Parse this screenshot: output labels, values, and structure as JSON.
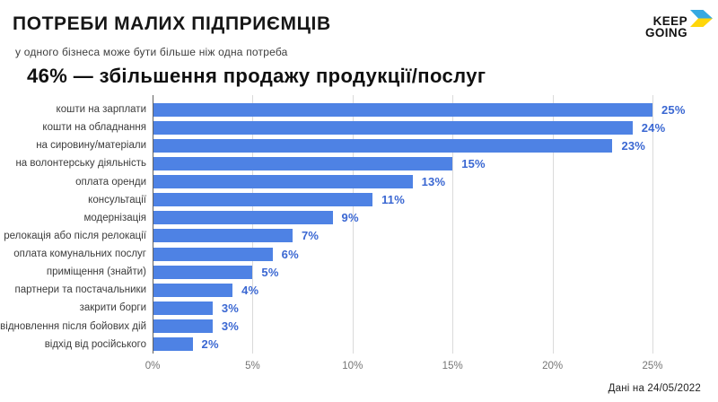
{
  "header": {
    "title": "ПОТРЕБИ МАЛИХ ПІДПРИЄМЦІВ",
    "subtitle": "у одного бізнеса може бути більше ніж одна потреба",
    "logo": {
      "line1": "KEEP",
      "line2": "GOING",
      "flag_blue": "#36A9E1",
      "flag_yellow": "#FFD60A"
    }
  },
  "heading": "46% — збільшення продажу продукції/послуг",
  "footer": {
    "note": "Дані на 24/05/2022"
  },
  "chart_data": {
    "type": "bar",
    "orientation": "horizontal",
    "title": "46% — збільшення продажу продукції/послуг",
    "categories": [
      "кошти на зарплати",
      "кошти на обладнання",
      "на сировину/матеріали",
      "на волонтерську діяльність",
      "оплата оренди",
      "консультації",
      "модернізація",
      "релокація або після релокації",
      "оплата комунальних послуг",
      "приміщення (знайти)",
      "партнери та постачальники",
      "закрити борги",
      "відновлення після бойових дій",
      "відхід від російського"
    ],
    "values": [
      25,
      24,
      23,
      15,
      13,
      11,
      9,
      7,
      6,
      5,
      4,
      3,
      3,
      2
    ],
    "value_labels": [
      "25%",
      "24%",
      "23%",
      "15%",
      "13%",
      "11%",
      "9%",
      "7%",
      "6%",
      "5%",
      "4%",
      "3%",
      "3%",
      "2%"
    ],
    "xlabel": "",
    "ylabel": "",
    "xlim": [
      0,
      25
    ],
    "x_ticks": [
      "0%",
      "5%",
      "10%",
      "15%",
      "20%",
      "25%"
    ],
    "grid": true,
    "legend": false,
    "bar_color": "#4E82E4",
    "value_label_color": "#3A67D2",
    "gridline_color": "#dadada",
    "axis_line_color": "#616161",
    "tick_label_color": "#757575"
  }
}
